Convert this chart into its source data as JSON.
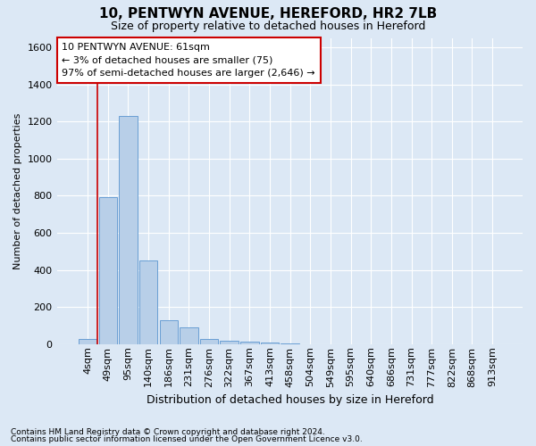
{
  "title1": "10, PENTWYN AVENUE, HEREFORD, HR2 7LB",
  "title2": "Size of property relative to detached houses in Hereford",
  "xlabel": "Distribution of detached houses by size in Hereford",
  "ylabel": "Number of detached properties",
  "footnote1": "Contains HM Land Registry data © Crown copyright and database right 2024.",
  "footnote2": "Contains public sector information licensed under the Open Government Licence v3.0.",
  "bin_labels": [
    "4sqm",
    "49sqm",
    "95sqm",
    "140sqm",
    "186sqm",
    "231sqm",
    "276sqm",
    "322sqm",
    "367sqm",
    "413sqm",
    "458sqm",
    "504sqm",
    "549sqm",
    "595sqm",
    "640sqm",
    "686sqm",
    "731sqm",
    "777sqm",
    "822sqm",
    "868sqm",
    "913sqm"
  ],
  "bar_heights": [
    30,
    790,
    1230,
    450,
    130,
    90,
    30,
    20,
    15,
    10,
    5,
    0,
    0,
    0,
    0,
    0,
    0,
    0,
    0,
    0,
    0
  ],
  "bar_color": "#b8cfe8",
  "bar_edge_color": "#6a9fd4",
  "background_color": "#dce8f5",
  "grid_color": "#ffffff",
  "property_line_color": "#cc0000",
  "property_line_x": 0.5,
  "ylim": [
    0,
    1650
  ],
  "yticks": [
    0,
    200,
    400,
    600,
    800,
    1000,
    1200,
    1400,
    1600
  ],
  "annotation_line1": "10 PENTWYN AVENUE: 61sqm",
  "annotation_line2": "← 3% of detached houses are smaller (75)",
  "annotation_line3": "97% of semi-detached houses are larger (2,646) →",
  "annotation_box_color": "#cc0000",
  "title1_fontsize": 11,
  "title2_fontsize": 9,
  "xlabel_fontsize": 9,
  "ylabel_fontsize": 8,
  "tick_fontsize": 8,
  "footnote_fontsize": 6.5
}
